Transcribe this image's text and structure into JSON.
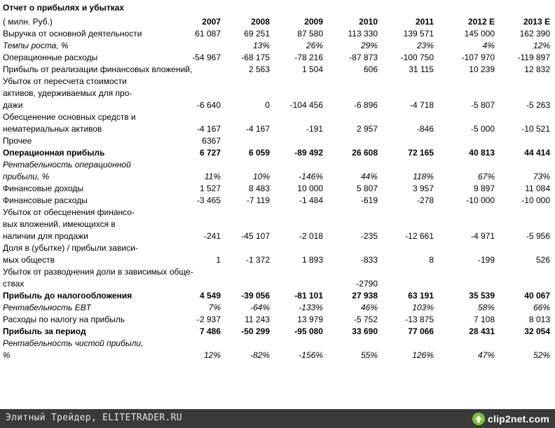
{
  "title": "Отчет о прибылях и убытках",
  "unit": "( милн. Руб.)",
  "years": [
    "2007",
    "2008",
    "2009",
    "2010",
    "2011",
    "2012 E",
    "2013 E"
  ],
  "rows": [
    {
      "label": [
        "Выручка от основной деятельности"
      ],
      "values": [
        "61 087",
        "69 251",
        "87 580",
        "113 330",
        "139 571",
        "145 000",
        "162 390"
      ],
      "style": "normal"
    },
    {
      "label": [
        "Темпы роста, %"
      ],
      "values": [
        "",
        "13%",
        "26%",
        "29%",
        "23%",
        "4%",
        "12%"
      ],
      "style": "ital"
    },
    {
      "label": [
        "Операционные расходы"
      ],
      "values": [
        "-54 967",
        "-68 175",
        "-78 216",
        "-87 873",
        "-100 750",
        "-107 970",
        "-119 897"
      ],
      "style": "normal"
    },
    {
      "label": [
        "Прибыль от реализации финансовых вложений,"
      ],
      "values": [
        "",
        "2 563",
        "1 504",
        "606",
        "31 115",
        "10 239",
        "12 832"
      ],
      "style": "normal"
    },
    {
      "label": [
        "Убыток от пересчета стоимости",
        "активов, удерживаемых для про-",
        "дажи"
      ],
      "values": [
        "-6 640",
        "0",
        "-104 456",
        "-6 896",
        "-4 718",
        "-5 807",
        "-5 263"
      ],
      "style": "normal"
    },
    {
      "label": [
        "Обесценение основных средств и",
        "нематериальных активов"
      ],
      "values": [
        "-4 167",
        "-4 167",
        "-191",
        "2 957",
        "-846",
        "-5 000",
        "-10 521"
      ],
      "style": "normal"
    },
    {
      "label": [
        "Прочее"
      ],
      "values": [
        "6367",
        "",
        "",
        "",
        "",
        "",
        ""
      ],
      "style": "normal"
    },
    {
      "label": [
        "Операционная прибыль"
      ],
      "values": [
        "6 727",
        "6 059",
        "-89 492",
        "26 608",
        "72 165",
        "40 813",
        "44 414"
      ],
      "style": "bold"
    },
    {
      "label": [
        "Рентабельность операционной",
        "прибыли, %"
      ],
      "values": [
        "11%",
        "10%",
        "-146%",
        "44%",
        "118%",
        "67%",
        "73%"
      ],
      "style": "ital"
    },
    {
      "label": [
        "Финансовые доходы"
      ],
      "values": [
        "1 527",
        "8 483",
        "10 000",
        "5 807",
        "3 957",
        "9 897",
        "11 084"
      ],
      "style": "normal"
    },
    {
      "label": [
        "Финансовые расходы"
      ],
      "values": [
        "-3 465",
        "-7 119",
        "-1 484",
        "-619",
        "-278",
        "-10 000",
        "-10 000"
      ],
      "style": "normal"
    },
    {
      "label": [
        "Убыток от обесценения финансо-",
        "вых вложений, имеющихся в",
        "наличии для продажи"
      ],
      "values": [
        "-241",
        "-45 107",
        "-2 018",
        "-235",
        "-12 661",
        "-4 971",
        "-5 956"
      ],
      "style": "normal"
    },
    {
      "label": [
        "Доля в (убытке) / прибыли зависи-",
        "мых обществ"
      ],
      "values": [
        "1",
        "-1 372",
        "1 893",
        "-833",
        "8",
        "-199",
        "526"
      ],
      "style": "normal"
    },
    {
      "label": [
        "Убыток от разводнения доли в зависимых обще-",
        "ствах"
      ],
      "values": [
        "",
        "",
        "",
        "-2790",
        "",
        "",
        ""
      ],
      "style": "normal"
    },
    {
      "label": [
        "Прибыль до налогообложения"
      ],
      "values": [
        "4 549",
        "-39 056",
        "-81 101",
        "27 938",
        "63 191",
        "35 539",
        "40 067"
      ],
      "style": "bold"
    },
    {
      "label": [
        "Рентабельность EBT"
      ],
      "values": [
        "7%",
        "-64%",
        "-133%",
        "46%",
        "103%",
        "58%",
        "66%"
      ],
      "style": "ital"
    },
    {
      "label": [
        "Расходы по налогу на прибыль"
      ],
      "values": [
        "-2 937",
        "11 243",
        "13 979",
        "-5 752",
        "-13 875",
        "7 108",
        "8 013"
      ],
      "style": "normal"
    },
    {
      "label": [
        "Прибыль за период"
      ],
      "values": [
        "7 486",
        "-50 299",
        "-95 080",
        "33 690",
        "77 066",
        "28 431",
        "32 054"
      ],
      "style": "bold"
    },
    {
      "label": [
        "Рентабельность чистой прибыли,",
        "%"
      ],
      "values": [
        "12%",
        "-82%",
        "-156%",
        "55%",
        "126%",
        "47%",
        "52%"
      ],
      "style": "ital"
    }
  ],
  "footer": {
    "site": "Элитный Трейдер, ELITETRADER.RU",
    "brand": "clip2net.com",
    "icon": "arrow-up-icon",
    "brand_color": "#7cc242"
  }
}
